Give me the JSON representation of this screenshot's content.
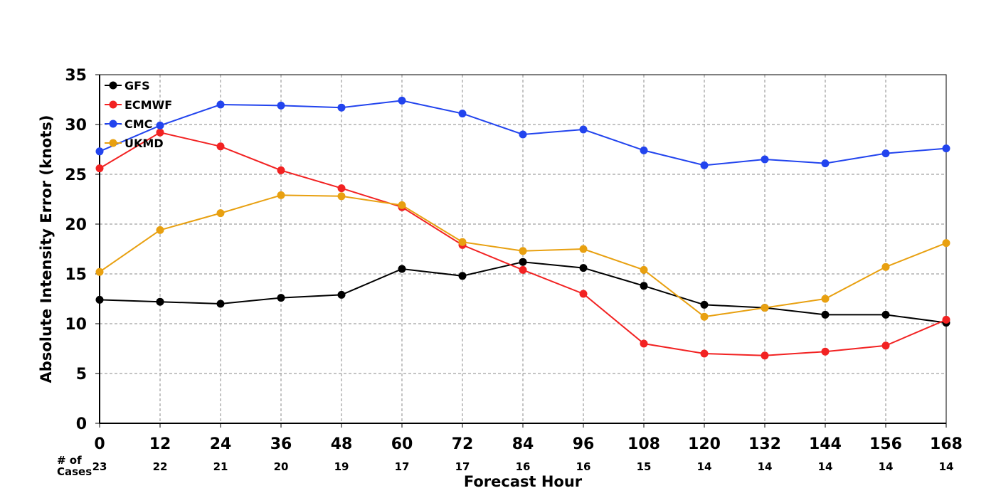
{
  "chart_data": {
    "type": "line",
    "xlabel": "Forecast Hour",
    "ylabel": "Absolute Intensity Error (knots)",
    "x": [
      0,
      12,
      24,
      36,
      48,
      60,
      72,
      84,
      96,
      108,
      120,
      132,
      144,
      156,
      168
    ],
    "ylim": [
      0,
      35
    ],
    "yticks": [
      0,
      5,
      10,
      15,
      20,
      25,
      30,
      35
    ],
    "grid": true,
    "legend_position": "top-left",
    "cases_label": "# of Cases",
    "cases": [
      23,
      22,
      21,
      20,
      19,
      17,
      17,
      16,
      16,
      15,
      14,
      14,
      14,
      14,
      14
    ],
    "series": [
      {
        "name": "GFS",
        "color": "#000000",
        "values": [
          12.4,
          12.2,
          12.0,
          12.6,
          12.9,
          15.5,
          14.8,
          16.2,
          15.6,
          13.8,
          11.9,
          11.6,
          10.9,
          10.9,
          10.1
        ]
      },
      {
        "name": "ECMWF",
        "color": "#f22222",
        "values": [
          25.6,
          29.2,
          27.8,
          25.4,
          23.6,
          21.7,
          17.9,
          15.4,
          13.0,
          8.0,
          7.0,
          6.8,
          7.2,
          7.8,
          10.4
        ]
      },
      {
        "name": "CMC",
        "color": "#2244ee",
        "values": [
          27.3,
          29.9,
          32.0,
          31.9,
          31.7,
          32.4,
          31.1,
          29.0,
          29.5,
          27.4,
          25.9,
          26.5,
          26.1,
          27.1,
          27.6
        ]
      },
      {
        "name": "UKMD",
        "color": "#e8a010",
        "values": [
          15.2,
          19.4,
          21.1,
          22.9,
          22.8,
          21.9,
          18.2,
          17.3,
          17.5,
          15.4,
          10.7,
          11.6,
          12.5,
          15.7,
          18.1
        ]
      }
    ]
  }
}
